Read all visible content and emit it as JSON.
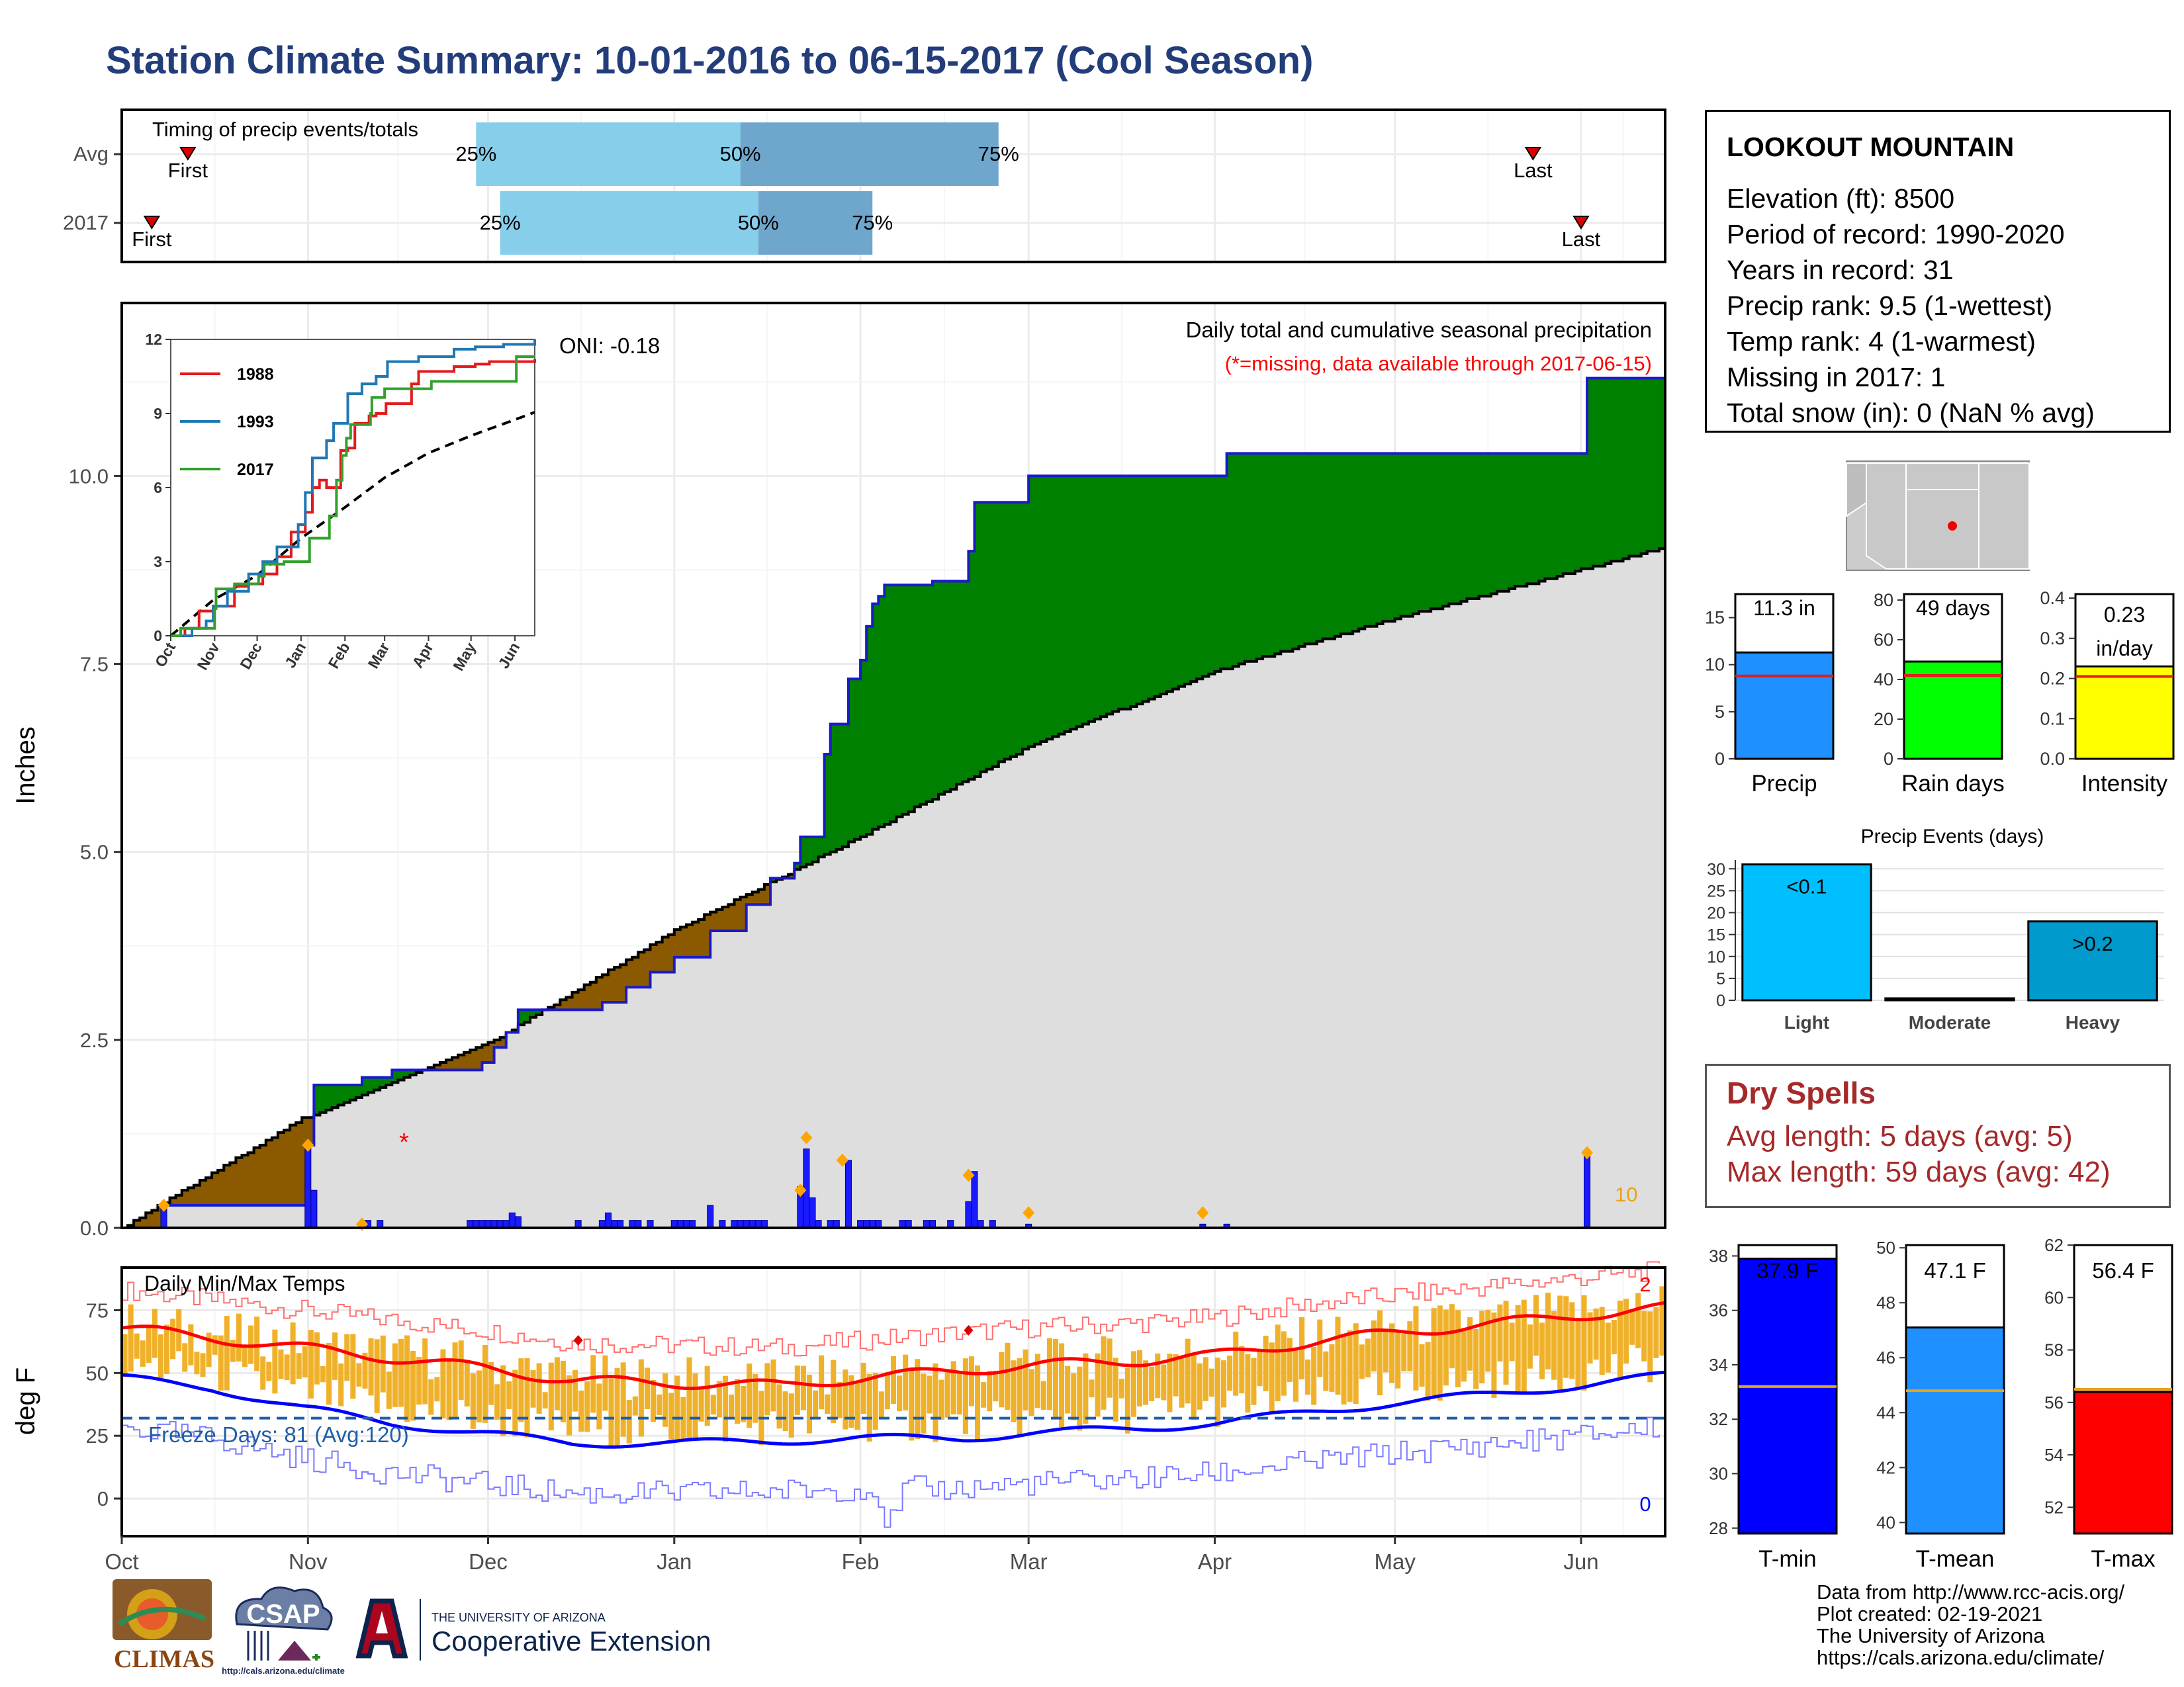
{
  "title": "Station Climate Summary: 10-01-2016 to 06-15-2017 (Cool Season)",
  "station": {
    "name": "LOOKOUT MOUNTAIN",
    "rows": [
      "Elevation (ft): 8500",
      "Period of record: 1990-2020",
      "Years in record: 31",
      "Precip rank: 9.5 (1-wettest)",
      "Temp rank: 4 (1-warmest)",
      "Missing in 2017: 1",
      "Total snow (in): 0 (NaN % avg)"
    ]
  },
  "dry_spells": {
    "title": "Dry Spells",
    "avg_length": "Avg length: 5 days (avg: 5)",
    "max_length": "Max length: 59 days (avg: 42)"
  },
  "footer": [
    "Data from http://www.rcc-acis.org/",
    "Plot created: 02-19-2021",
    "The University of Arizona",
    "https://cals.arizona.edu/climate/"
  ],
  "logos": {
    "climas": "CLIMAS",
    "csap": "CSAP",
    "csap_url": "http://cals.arizona.edu/climate",
    "ua_line1": "THE UNIVERSITY OF ARIZONA",
    "ua_line2": "Cooperative Extension"
  },
  "colors": {
    "title": "#233d7b",
    "wet": "#008000",
    "dry": "#8b5a00",
    "normal_fill": "#dedede",
    "bar_blue": "#1a1aff",
    "marker_orange": "#ffa500",
    "tmax_line": "#ff0000",
    "tmin_line": "#0000ff",
    "range_bar": "#f0b12a",
    "freeze_line": "#1f5fa8",
    "quartile_light": "#87ceeb",
    "quartile_dark": "#6fa6cc"
  },
  "chart_data": [
    {
      "id": "timing",
      "type": "bar",
      "title": "Timing of precip events/totals",
      "rows": [
        {
          "label": "Avg",
          "first": "10-12",
          "p25": "11-29",
          "p50": "01-12",
          "p75": "02-24",
          "last": "05-24"
        },
        {
          "label": "2017",
          "first": "10-06",
          "p25": "12-03",
          "p50": "01-15",
          "p75": "02-03",
          "last": "06-01"
        }
      ],
      "quartile_labels": [
        "25%",
        "50%",
        "75%"
      ],
      "first_label": "First",
      "last_label": "Last"
    },
    {
      "id": "cumulative_precip",
      "type": "area",
      "title": "Daily total and cumulative seasonal precipitation",
      "subtitle": "(*=missing, data available through 2017-06-15)",
      "oni": "ONI: -0.18",
      "ylabel": "Inches",
      "ylim": [
        0,
        12.3
      ],
      "yticks": [
        0.0,
        2.5,
        5.0,
        7.5,
        10.0
      ],
      "ytick_labels": [
        "0.0",
        "2.5",
        "5.0",
        "7.5",
        "10.0"
      ],
      "x_months": [
        "Oct",
        "Nov",
        "Dec",
        "Jan",
        "Feb",
        "Mar",
        "Apr",
        "May",
        "Jun"
      ],
      "normal_cumulative": [
        [
          0,
          0
        ],
        [
          30,
          1.45
        ],
        [
          61,
          2.45
        ],
        [
          92,
          3.95
        ],
        [
          123,
          5.2
        ],
        [
          151,
          6.4
        ],
        [
          182,
          7.4
        ],
        [
          212,
          8.1
        ],
        [
          243,
          8.75
        ],
        [
          257,
          9.05
        ]
      ],
      "observed_cumulative": [
        [
          0,
          0
        ],
        [
          6,
          0
        ],
        [
          7,
          0.3
        ],
        [
          30,
          0.3
        ],
        [
          31,
          1.1
        ],
        [
          32,
          1.9
        ],
        [
          38,
          1.9
        ],
        [
          40,
          2.0
        ],
        [
          45,
          2.1
        ],
        [
          60,
          2.2
        ],
        [
          62,
          2.4
        ],
        [
          64,
          2.6
        ],
        [
          66,
          2.9
        ],
        [
          76,
          2.9
        ],
        [
          80,
          3.0
        ],
        [
          84,
          3.2
        ],
        [
          88,
          3.4
        ],
        [
          92,
          3.6
        ],
        [
          98,
          3.95
        ],
        [
          104,
          4.3
        ],
        [
          108,
          4.65
        ],
        [
          112,
          4.85
        ],
        [
          113,
          5.2
        ],
        [
          115,
          5.2
        ],
        [
          117,
          6.3
        ],
        [
          118,
          6.7
        ],
        [
          120,
          6.7
        ],
        [
          121,
          7.3
        ],
        [
          123,
          7.55
        ],
        [
          124,
          8.0
        ],
        [
          125,
          8.3
        ],
        [
          126,
          8.4
        ],
        [
          127,
          8.55
        ],
        [
          133,
          8.55
        ],
        [
          135,
          8.6
        ],
        [
          141,
          9.0
        ],
        [
          142,
          9.65
        ],
        [
          150,
          9.65
        ],
        [
          151,
          10.0
        ],
        [
          182,
          10.0
        ],
        [
          184,
          10.3
        ],
        [
          243,
          10.3
        ],
        [
          244,
          11.3
        ],
        [
          257,
          11.3
        ]
      ],
      "daily_precip": [
        [
          7,
          0.3
        ],
        [
          31,
          1.1
        ],
        [
          32,
          0.5
        ],
        [
          41,
          0.1
        ],
        [
          43,
          0.1
        ],
        [
          58,
          0.1
        ],
        [
          59,
          0.1
        ],
        [
          60,
          0.1
        ],
        [
          61,
          0.1
        ],
        [
          62,
          0.1
        ],
        [
          63,
          0.1
        ],
        [
          64,
          0.1
        ],
        [
          65,
          0.2
        ],
        [
          66,
          0.15
        ],
        [
          76,
          0.1
        ],
        [
          80,
          0.1
        ],
        [
          81,
          0.2
        ],
        [
          82,
          0.1
        ],
        [
          83,
          0.1
        ],
        [
          85,
          0.1
        ],
        [
          86,
          0.1
        ],
        [
          88,
          0.1
        ],
        [
          92,
          0.1
        ],
        [
          93,
          0.1
        ],
        [
          94,
          0.1
        ],
        [
          95,
          0.1
        ],
        [
          98,
          0.3
        ],
        [
          100,
          0.1
        ],
        [
          102,
          0.1
        ],
        [
          103,
          0.1
        ],
        [
          104,
          0.1
        ],
        [
          105,
          0.1
        ],
        [
          106,
          0.1
        ],
        [
          107,
          0.1
        ],
        [
          113,
          0.55
        ],
        [
          114,
          1.05
        ],
        [
          115,
          0.4
        ],
        [
          116,
          0.1
        ],
        [
          118,
          0.1
        ],
        [
          119,
          0.1
        ],
        [
          121,
          0.9
        ],
        [
          123,
          0.1
        ],
        [
          124,
          0.1
        ],
        [
          125,
          0.1
        ],
        [
          126,
          0.1
        ],
        [
          130,
          0.1
        ],
        [
          131,
          0.1
        ],
        [
          134,
          0.1
        ],
        [
          135,
          0.1
        ],
        [
          138,
          0.1
        ],
        [
          141,
          0.35
        ],
        [
          142,
          0.75
        ],
        [
          143,
          0.1
        ],
        [
          145,
          0.1
        ],
        [
          151,
          0.05
        ],
        [
          180,
          0.05
        ],
        [
          184,
          0.05
        ],
        [
          244,
          1.0
        ]
      ],
      "event_markers": [
        [
          7,
          0.3
        ],
        [
          31,
          1.1
        ],
        [
          40,
          0.05
        ],
        [
          113,
          0.5
        ],
        [
          114,
          1.2
        ],
        [
          120,
          0.9
        ],
        [
          141,
          0.7
        ],
        [
          151,
          0.2
        ],
        [
          180,
          0.2
        ],
        [
          244,
          1.0
        ]
      ],
      "missing_marker": "*",
      "missing_day": 47,
      "count_label": "10"
    },
    {
      "id": "cumulative_inset",
      "type": "line",
      "ylim": [
        0,
        12
      ],
      "yticks": [
        "0",
        "3",
        "6",
        "9",
        "12"
      ],
      "x_months": [
        "Oct",
        "Nov",
        "Dec",
        "Jan",
        "Feb",
        "Mar",
        "Apr",
        "May",
        "Jun"
      ],
      "series": [
        {
          "name": "1988",
          "color": "#e31a1c",
          "values": [
            [
              0,
              0
            ],
            [
              10,
              0.3
            ],
            [
              20,
              1.0
            ],
            [
              30,
              1.2
            ],
            [
              45,
              2.0
            ],
            [
              55,
              2.1
            ],
            [
              65,
              2.5
            ],
            [
              75,
              3.2
            ],
            [
              85,
              4.2
            ],
            [
              95,
              5.0
            ],
            [
              100,
              6.0
            ],
            [
              105,
              6.3
            ],
            [
              110,
              6.0
            ],
            [
              120,
              7.5
            ],
            [
              125,
              7.6
            ],
            [
              130,
              8.6
            ],
            [
              140,
              8.9
            ],
            [
              145,
              9.0
            ],
            [
              152,
              9.4
            ],
            [
              170,
              10.2
            ],
            [
              175,
              10.7
            ],
            [
              200,
              10.9
            ],
            [
              215,
              11.0
            ],
            [
              225,
              11.1
            ],
            [
              257,
              11.2
            ]
          ]
        },
        {
          "name": "1993",
          "color": "#1f78b4",
          "values": [
            [
              0,
              0
            ],
            [
              15,
              0.3
            ],
            [
              25,
              0.6
            ],
            [
              30,
              1.2
            ],
            [
              40,
              1.8
            ],
            [
              55,
              2.5
            ],
            [
              65,
              3.0
            ],
            [
              75,
              3.6
            ],
            [
              90,
              4.5
            ],
            [
              95,
              5.8
            ],
            [
              100,
              7.2
            ],
            [
              110,
              7.9
            ],
            [
              115,
              8.6
            ],
            [
              125,
              9.8
            ],
            [
              135,
              10.2
            ],
            [
              145,
              10.5
            ],
            [
              153,
              11.1
            ],
            [
              175,
              11.3
            ],
            [
              200,
              11.6
            ],
            [
              215,
              11.7
            ],
            [
              235,
              11.8
            ],
            [
              257,
              12.0
            ]
          ]
        },
        {
          "name": "2017",
          "color": "#33a02c",
          "values": [
            [
              0,
              0
            ],
            [
              7,
              0.3
            ],
            [
              31,
              1.1
            ],
            [
              32,
              1.9
            ],
            [
              45,
              2.1
            ],
            [
              62,
              2.4
            ],
            [
              66,
              2.9
            ],
            [
              80,
              3.0
            ],
            [
              98,
              3.95
            ],
            [
              112,
              4.85
            ],
            [
              117,
              6.3
            ],
            [
              121,
              7.3
            ],
            [
              124,
              8.0
            ],
            [
              127,
              8.55
            ],
            [
              141,
              9.0
            ],
            [
              142,
              9.65
            ],
            [
              151,
              10.0
            ],
            [
              184,
              10.3
            ],
            [
              244,
              11.3
            ],
            [
              257,
              11.3
            ]
          ]
        }
      ],
      "normal": [
        [
          0,
          0
        ],
        [
          30,
          1.45
        ],
        [
          61,
          2.45
        ],
        [
          92,
          3.95
        ],
        [
          123,
          5.2
        ],
        [
          151,
          6.4
        ],
        [
          182,
          7.4
        ],
        [
          212,
          8.1
        ],
        [
          243,
          8.75
        ],
        [
          257,
          9.05
        ]
      ]
    },
    {
      "id": "temperature",
      "type": "line",
      "title": "Daily Min/Max Temps",
      "ylabel": "deg F",
      "ylim": [
        -15,
        92
      ],
      "yticks": [
        "0",
        "25",
        "50",
        "75"
      ],
      "x_months": [
        "Oct",
        "Nov",
        "Dec",
        "Jan",
        "Feb",
        "Mar",
        "Apr",
        "May",
        "Jun"
      ],
      "avg_tmax": [
        [
          0,
          68
        ],
        [
          15,
          64
        ],
        [
          30,
          60
        ],
        [
          45,
          56
        ],
        [
          60,
          52
        ],
        [
          75,
          47
        ],
        [
          92,
          46
        ],
        [
          110,
          45
        ],
        [
          123,
          48
        ],
        [
          140,
          51
        ],
        [
          151,
          53
        ],
        [
          170,
          55
        ],
        [
          182,
          57
        ],
        [
          200,
          63
        ],
        [
          212,
          66
        ],
        [
          230,
          70
        ],
        [
          243,
          73
        ],
        [
          257,
          76
        ]
      ],
      "avg_tmin": [
        [
          0,
          48
        ],
        [
          15,
          44
        ],
        [
          30,
          36
        ],
        [
          45,
          30
        ],
        [
          60,
          26
        ],
        [
          75,
          22
        ],
        [
          92,
          22
        ],
        [
          110,
          23
        ],
        [
          123,
          24
        ],
        [
          140,
          24
        ],
        [
          151,
          26
        ],
        [
          170,
          28
        ],
        [
          182,
          30
        ],
        [
          200,
          35
        ],
        [
          212,
          38
        ],
        [
          230,
          42
        ],
        [
          243,
          45
        ],
        [
          257,
          49
        ]
      ],
      "record_high_label": "2",
      "record_low_label": "0",
      "freeze_line": 32,
      "freeze_label": "Freeze Days: 81 (Avg:120)"
    },
    {
      "id": "precip_summary",
      "type": "bar",
      "categories": [
        "Precip",
        "Rain days",
        "Intensity"
      ],
      "values": [
        11.3,
        49,
        0.23
      ],
      "averages": [
        8.8,
        42,
        0.205
      ],
      "labels": [
        "11.3 in",
        "49 days",
        "0.23 in/day"
      ],
      "ylims": [
        [
          0,
          17.5
        ],
        [
          0,
          83
        ],
        [
          0,
          0.41
        ]
      ],
      "yticks": [
        [
          "0",
          "5",
          "10",
          "15"
        ],
        [
          "0",
          "20",
          "40",
          "60",
          "80"
        ],
        [
          "0.0",
          "0.1",
          "0.2",
          "0.3",
          "0.4"
        ]
      ],
      "colors": [
        "#1e90ff",
        "#00ff00",
        "#ffff00"
      ]
    },
    {
      "id": "precip_events",
      "type": "bar",
      "title": "Precip Events (days)",
      "categories": [
        "Light",
        "Moderate",
        "Heavy"
      ],
      "values": [
        31,
        0,
        18
      ],
      "value_labels": [
        "<0.1",
        "",
        ">0.2"
      ],
      "ylim": [
        0,
        32
      ],
      "yticks": [
        "0",
        "5",
        "10",
        "15",
        "20",
        "25",
        "30"
      ],
      "colors": [
        "#00bfff",
        "#1e90ff",
        "#009acd"
      ]
    },
    {
      "id": "temp_summary",
      "type": "bar",
      "categories": [
        "T-min",
        "T-mean",
        "T-max"
      ],
      "values": [
        37.9,
        47.1,
        56.4
      ],
      "averages": [
        33.2,
        44.8,
        56.5
      ],
      "labels": [
        "37.9 F",
        "47.1 F",
        "56.4 F"
      ],
      "ylims": [
        [
          27.8,
          38.4
        ],
        [
          39.6,
          50.1
        ],
        [
          51.0,
          62.0
        ]
      ],
      "yticks": [
        [
          "28",
          "30",
          "32",
          "34",
          "36",
          "38"
        ],
        [
          "40",
          "42",
          "44",
          "46",
          "48",
          "50"
        ],
        [
          "52",
          "54",
          "56",
          "58",
          "60",
          "62"
        ]
      ],
      "colors": [
        "#0000ff",
        "#1e90ff",
        "#ff0000"
      ]
    }
  ]
}
